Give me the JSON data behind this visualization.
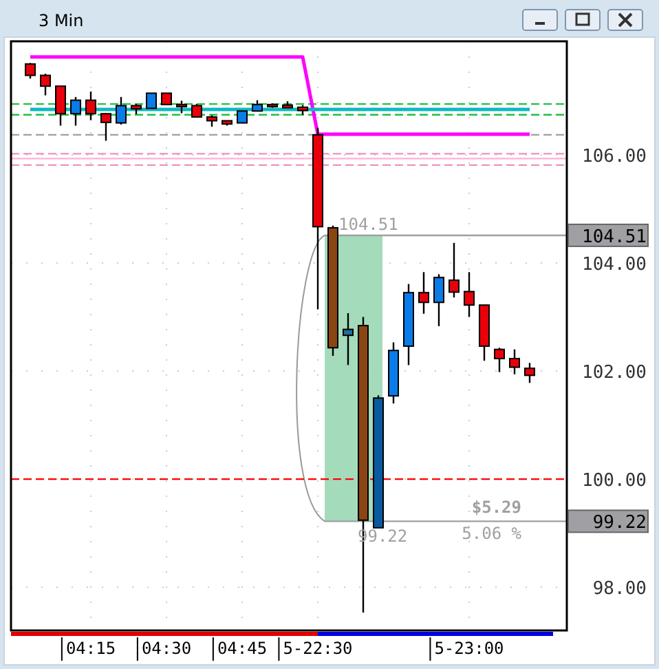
{
  "chart_data": {
    "type": "candlestick",
    "title": "3 Min",
    "categories": [
      null,
      null,
      null,
      null,
      "04:15",
      null,
      null,
      null,
      null,
      "04:30",
      null,
      null,
      null,
      null,
      "04:45",
      null,
      null,
      null,
      null,
      "5-22:30",
      null,
      null,
      null,
      null,
      null,
      null,
      null,
      null,
      null,
      "5-23:00",
      null,
      null,
      null,
      null
    ],
    "ohlc": [
      [
        107.68,
        107.7,
        107.41,
        107.47
      ],
      [
        107.47,
        107.5,
        107.1,
        107.27
      ],
      [
        107.27,
        107.27,
        106.54,
        106.76
      ],
      [
        106.76,
        107.07,
        106.54,
        107.01
      ],
      [
        107.01,
        107.17,
        106.64,
        106.76
      ],
      [
        106.76,
        106.77,
        106.26,
        106.6
      ],
      [
        106.59,
        107.07,
        106.56,
        106.91
      ],
      [
        106.91,
        106.94,
        106.75,
        106.85
      ],
      [
        106.86,
        107.14,
        106.86,
        107.14
      ],
      [
        107.14,
        107.14,
        106.93,
        106.93
      ],
      [
        106.93,
        107.0,
        106.77,
        106.9
      ],
      [
        106.91,
        106.94,
        106.7,
        106.7
      ],
      [
        106.7,
        106.73,
        106.52,
        106.63
      ],
      [
        106.63,
        106.63,
        106.54,
        106.57
      ],
      [
        106.59,
        106.81,
        106.59,
        106.81
      ],
      [
        106.81,
        107.01,
        106.8,
        106.93
      ],
      [
        106.93,
        106.95,
        106.87,
        106.9
      ],
      [
        106.92,
        106.99,
        106.87,
        106.87
      ],
      [
        106.88,
        106.92,
        106.74,
        106.82
      ],
      [
        106.37,
        106.5,
        103.14,
        104.67
      ],
      [
        104.65,
        104.69,
        102.28,
        102.43
      ],
      [
        102.66,
        103.07,
        102.11,
        102.77
      ],
      [
        102.84,
        103.0,
        97.53,
        99.24
      ],
      [
        99.1,
        101.55,
        99.1,
        101.5
      ],
      [
        101.54,
        102.53,
        101.4,
        102.38
      ],
      [
        102.46,
        103.61,
        102.11,
        103.45
      ],
      [
        103.45,
        103.83,
        103.06,
        103.27
      ],
      [
        103.27,
        103.79,
        102.83,
        103.73
      ],
      [
        103.68,
        104.37,
        103.36,
        103.46
      ],
      [
        103.47,
        103.83,
        103.0,
        103.22
      ],
      [
        103.22,
        103.22,
        102.19,
        102.46
      ],
      [
        102.4,
        102.43,
        101.98,
        102.23
      ],
      [
        102.23,
        102.4,
        101.94,
        102.07
      ],
      [
        102.05,
        102.15,
        101.78,
        101.92
      ]
    ],
    "colors": [
      "#e8000a",
      "#e8000a",
      "#e8000a",
      "#0a7ce8",
      "#e8000a",
      "#e8000a",
      "#0a7ce8",
      "#e8000a",
      "#0a7ce8",
      "#e8000a",
      "#e8000a",
      "#e8000a",
      "#e8000a",
      "#e8000a",
      "#0a7ce8",
      "#0a7ce8",
      "#e8000a",
      "#e8000a",
      "#e8000a",
      "#e8000a",
      "#8b4513",
      "#1f6f9a",
      "#8b4513",
      "#0a5aa0",
      "#0a7ce8",
      "#0a7ce8",
      "#e8000a",
      "#0a7ce8",
      "#e8000a",
      "#e8000a",
      "#e8000a",
      "#e8000a",
      "#e8000a",
      "#e8000a"
    ],
    "series": [
      {
        "type": "line",
        "color": "#ff00ff",
        "values": [
          107.81,
          107.81,
          107.81,
          107.81,
          107.81,
          107.81,
          107.81,
          107.81,
          107.81,
          107.81,
          107.81,
          107.81,
          107.81,
          107.81,
          107.81,
          107.81,
          107.81,
          107.81,
          107.81,
          106.38,
          106.38,
          106.38,
          106.38,
          106.38,
          106.38,
          106.38,
          106.38,
          106.38,
          106.38,
          106.38,
          106.38,
          106.38,
          106.38,
          106.38
        ]
      },
      {
        "type": "line",
        "color": "#10b8c0",
        "values": [
          106.84,
          106.84,
          106.84,
          106.84,
          106.84,
          106.84,
          106.84,
          106.84,
          106.84,
          106.84,
          106.84,
          106.84,
          106.84,
          106.84,
          106.84,
          106.84,
          106.84,
          106.84,
          106.84,
          106.84,
          106.84,
          106.84,
          106.84,
          106.84,
          106.84,
          106.84,
          106.84,
          106.84,
          106.84,
          106.84,
          106.84,
          106.84,
          106.84,
          106.84
        ]
      }
    ],
    "ref_lines": [
      {
        "axis": "y",
        "value": 106.94,
        "color": "#22c040",
        "line_style": "dashed"
      },
      {
        "axis": "y",
        "value": 106.74,
        "color": "#22c040",
        "line_style": "dashed"
      },
      {
        "axis": "y",
        "value": 106.37,
        "color": "#a0a0a0",
        "line_style": "dashed"
      },
      {
        "axis": "y",
        "value": 106.02,
        "color": "#f090c0",
        "line_style": "dashed"
      },
      {
        "axis": "y",
        "value": 105.93,
        "color": "#ffb0d8",
        "line_style": "solid"
      },
      {
        "axis": "y",
        "value": 105.81,
        "color": "#f090c0",
        "line_style": "dashed"
      },
      {
        "axis": "y",
        "value": 100,
        "color": "#ff0000",
        "line_style": "dashed"
      },
      {
        "axis": "y",
        "value": 104.51,
        "color": "#a0a0a0",
        "line_style": "solid",
        "label": "104.51"
      },
      {
        "axis": "y",
        "value": 99.22,
        "color": "#a0a0a0",
        "line_style": "solid",
        "label": "99.22"
      }
    ],
    "bands": [
      {
        "axis": "y",
        "from": 99.22,
        "to": 104.51,
        "color": "#9ad8b4"
      }
    ],
    "annotations": [
      {
        "text": "104.51",
        "y": 104.51
      },
      {
        "text": "99.22",
        "y": 99.22
      },
      "$5.29",
      "5.06 %"
    ],
    "ylim": [
      97.2,
      108.1
    ],
    "yticks": [
      {
        "value": 98,
        "label": "98.00"
      },
      {
        "value": 100,
        "label": "100.00"
      },
      {
        "value": 102,
        "label": "102.00"
      },
      {
        "value": 104,
        "label": "104.00"
      },
      {
        "value": 106,
        "label": "106.00"
      }
    ],
    "grid": true
  }
}
